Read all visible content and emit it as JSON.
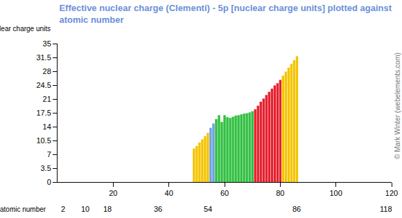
{
  "chart_data": {
    "type": "bar",
    "title": "Effective nuclear charge (Clementi) - 5p [nuclear charge units] plotted against atomic number",
    "xlabel": "atomic number",
    "ylabel": "nuclear charge units",
    "x": [
      49,
      50,
      51,
      52,
      53,
      54,
      55,
      56,
      57,
      58,
      59,
      60,
      61,
      62,
      63,
      64,
      65,
      66,
      67,
      68,
      69,
      70,
      71,
      72,
      73,
      74,
      75,
      76,
      77,
      78,
      79,
      80,
      81,
      82,
      83,
      84,
      85,
      86
    ],
    "values": [
      8.47,
      9.1,
      10.0,
      10.81,
      11.61,
      12.42,
      13.7,
      14.8,
      15.9,
      16.9,
      15.2,
      16.9,
      16.4,
      16.2,
      16.5,
      16.8,
      16.9,
      17.1,
      17.3,
      17.4,
      17.6,
      17.9,
      18.4,
      19.3,
      20.3,
      21.1,
      22.0,
      22.8,
      23.6,
      24.4,
      25.0,
      25.8,
      26.9,
      27.9,
      28.9,
      29.9,
      30.8,
      31.8
    ],
    "colors": [
      "#f5c400",
      "#f5c400",
      "#f5c400",
      "#f5c400",
      "#f5c400",
      "#f5c400",
      "#6f9fe0",
      "#6f9fe0",
      "#2fbf3f",
      "#2fbf3f",
      "#2fbf3f",
      "#2fbf3f",
      "#2fbf3f",
      "#2fbf3f",
      "#2fbf3f",
      "#2fbf3f",
      "#2fbf3f",
      "#2fbf3f",
      "#2fbf3f",
      "#2fbf3f",
      "#2fbf3f",
      "#2fbf3f",
      "#e5202e",
      "#e5202e",
      "#e5202e",
      "#e5202e",
      "#e5202e",
      "#e5202e",
      "#e5202e",
      "#e5202e",
      "#e5202e",
      "#e5202e",
      "#f5c400",
      "#f5c400",
      "#f5c400",
      "#f5c400",
      "#f5c400",
      "#f5c400"
    ],
    "xlim": [
      0,
      120
    ],
    "xticks": [
      20,
      40,
      60,
      80,
      100,
      120
    ],
    "ylim": [
      0,
      35
    ],
    "yticks": [
      0,
      3.5,
      7,
      10.5,
      14,
      17.5,
      21,
      24.5,
      28,
      31.5,
      35
    ],
    "grid": false,
    "annotations": [
      {
        "x": 2,
        "text": "2"
      },
      {
        "x": 10,
        "text": "10"
      },
      {
        "x": 18,
        "text": "18"
      },
      {
        "x": 36,
        "text": "36"
      },
      {
        "x": 54,
        "text": "54"
      },
      {
        "x": 86,
        "text": "86"
      },
      {
        "x": 118,
        "text": "118"
      },
      {
        "text": "© Mark Winter (webelements.com)"
      }
    ]
  }
}
